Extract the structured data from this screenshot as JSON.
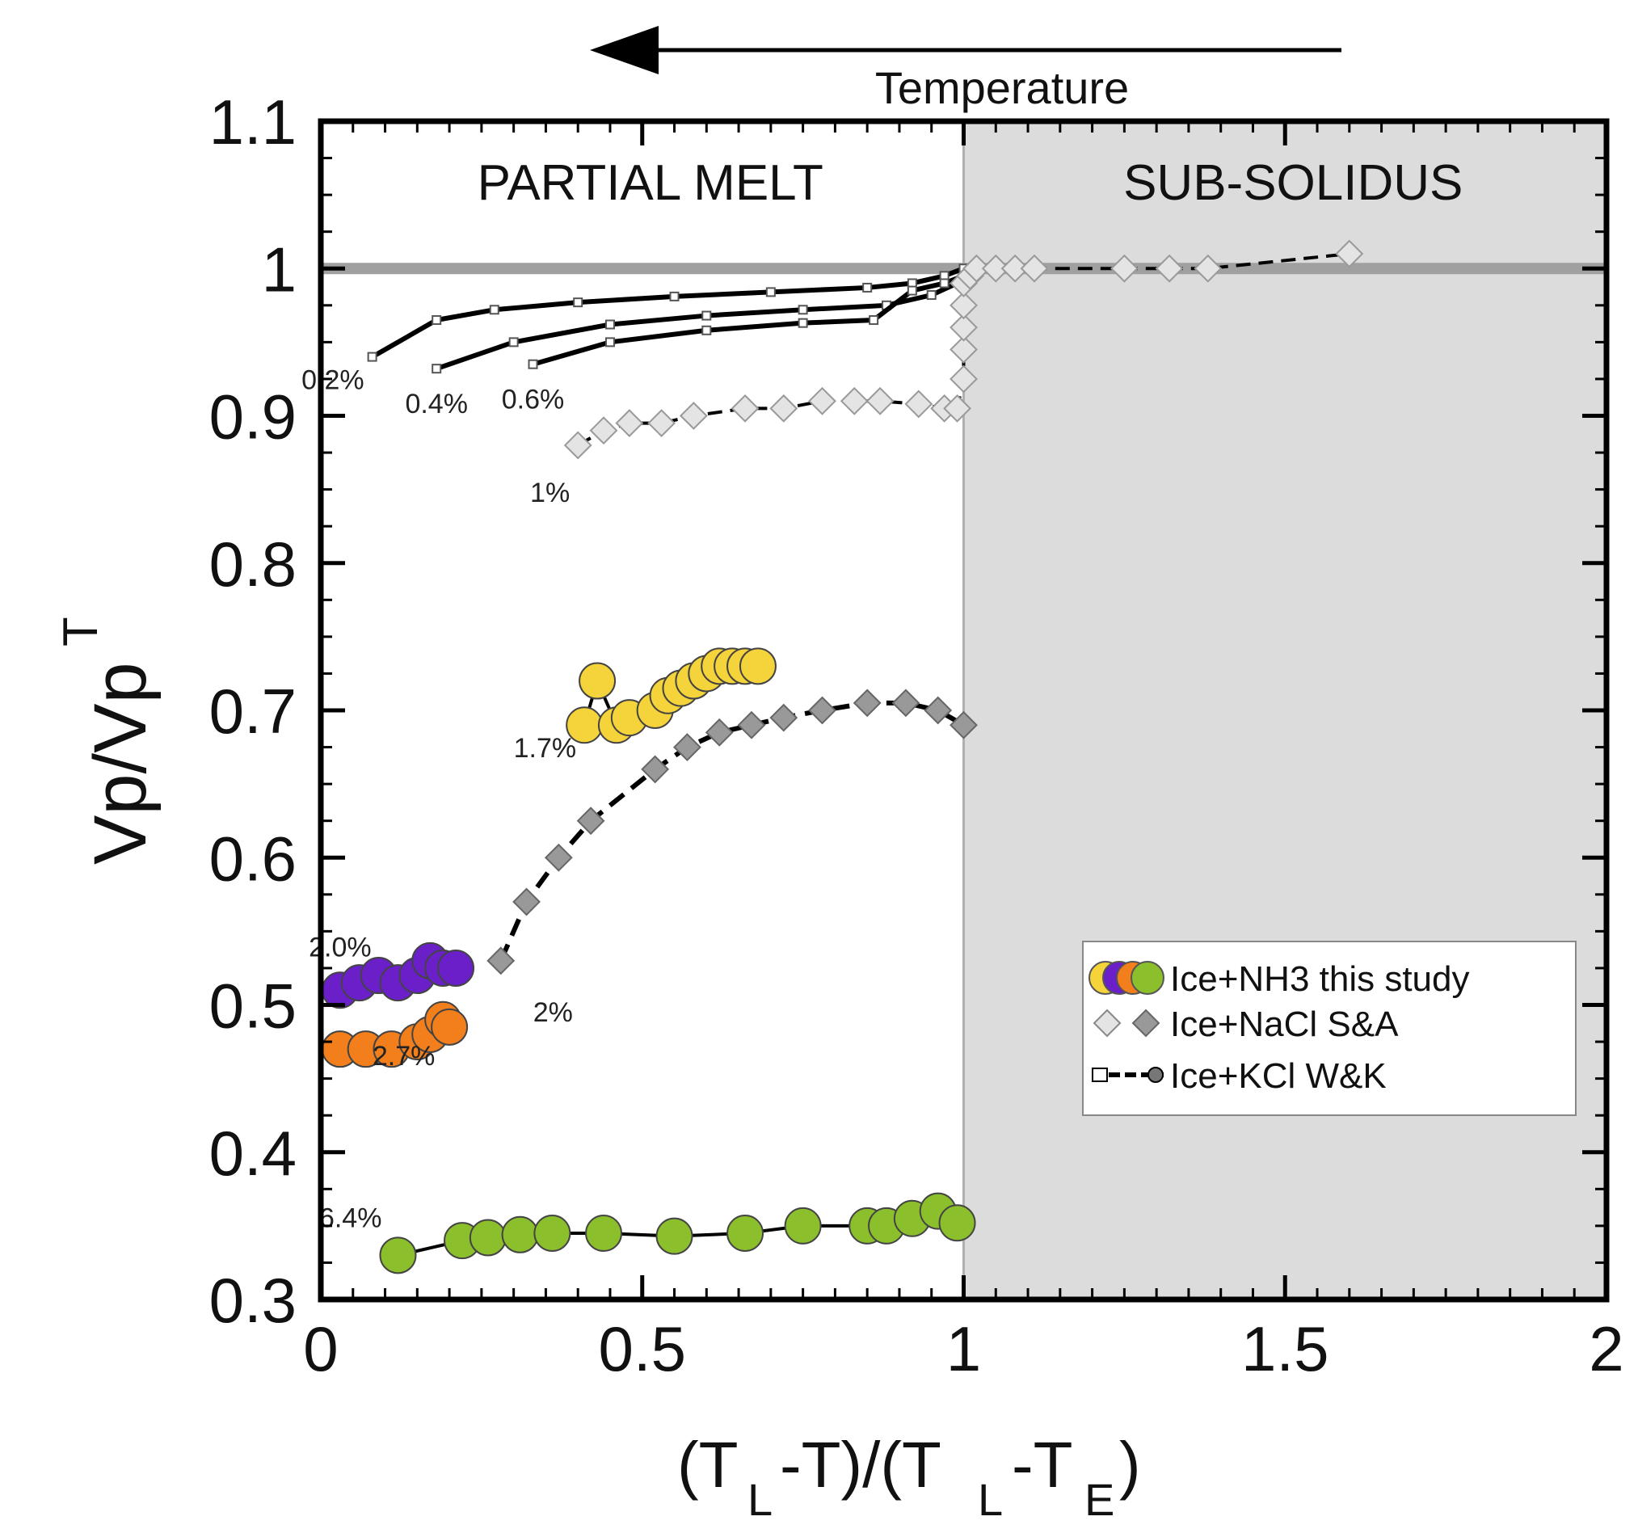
{
  "chart_data": {
    "type": "scatter",
    "title": "",
    "xlabel": "(T_L-T)/(T_L-T_E)",
    "ylabel": "Vp/Vp^T",
    "xlim": [
      0,
      2
    ],
    "ylim": [
      0.3,
      1.1
    ],
    "x_ticks": [
      {
        "value": 0,
        "label": "0"
      },
      {
        "value": 0.5,
        "label": "0.5"
      },
      {
        "value": 1,
        "label": "1"
      },
      {
        "value": 1.5,
        "label": "1.5"
      },
      {
        "value": 2,
        "label": "2"
      }
    ],
    "y_ticks": [
      {
        "value": 0.3,
        "label": "0.3"
      },
      {
        "value": 0.4,
        "label": "0.4"
      },
      {
        "value": 0.5,
        "label": "0.5"
      },
      {
        "value": 0.6,
        "label": "0.6"
      },
      {
        "value": 0.7,
        "label": "0.7"
      },
      {
        "value": 0.8,
        "label": "0.8"
      },
      {
        "value": 0.9,
        "label": "0.9"
      },
      {
        "value": 1,
        "label": "1"
      },
      {
        "value": 1.1,
        "label": "1.1"
      }
    ],
    "regions": [
      {
        "name": "partial-melt",
        "label": "PARTIAL MELT",
        "x_range": [
          0,
          1
        ],
        "fill": "#ffffff"
      },
      {
        "name": "sub-solidus",
        "label": "SUB-SOLIDUS",
        "x_range": [
          1,
          2
        ],
        "fill": "#dcdcdc"
      }
    ],
    "reference_line": {
      "y": 1.0,
      "color": "#a0a0a0"
    },
    "top_arrow": {
      "label": "Temperature",
      "direction": "left"
    },
    "legend": [
      {
        "label": "Ice+NH3 this study",
        "marker": "circle",
        "colors": [
          "#f5d33a",
          "#6a1fc9",
          "#f27f1b",
          "#8cbf2c"
        ]
      },
      {
        "label": "Ice+NaCl S&A",
        "marker": "diamond",
        "colors": [
          "#e4e4e4",
          "#999999"
        ]
      },
      {
        "label": "Ice+KCl W&K",
        "marker": "line",
        "colors": [
          "#ffffff",
          "#777777"
        ]
      }
    ],
    "series": [
      {
        "name": "KCl 0.2%",
        "label": "0.2%",
        "group": "Ice+KCl W&K",
        "marker": "square",
        "x": [
          0.08,
          0.18,
          0.27,
          0.4,
          0.55,
          0.7,
          0.85,
          0.92,
          0.97,
          1.0,
          1.02
        ],
        "y": [
          0.94,
          0.965,
          0.972,
          0.977,
          0.981,
          0.984,
          0.987,
          0.99,
          0.995,
          1.0,
          1.0
        ]
      },
      {
        "name": "KCl 0.4%",
        "label": "0.4%",
        "group": "Ice+KCl W&K",
        "marker": "square",
        "x": [
          0.18,
          0.3,
          0.45,
          0.6,
          0.75,
          0.88,
          0.95,
          1.0,
          1.02
        ],
        "y": [
          0.932,
          0.95,
          0.962,
          0.968,
          0.972,
          0.975,
          0.982,
          0.992,
          1.0
        ]
      },
      {
        "name": "KCl 0.6%",
        "label": "0.6%",
        "group": "Ice+KCl W&K",
        "marker": "square",
        "x": [
          0.33,
          0.45,
          0.6,
          0.75,
          0.86,
          0.92,
          0.97,
          1.0
        ],
        "y": [
          0.935,
          0.95,
          0.958,
          0.963,
          0.965,
          0.985,
          0.99,
          0.995
        ]
      },
      {
        "name": "NaCl 1%",
        "label": "1%",
        "group": "Ice+NaCl S&A",
        "marker": "diamond-light",
        "x": [
          0.4,
          0.44,
          0.48,
          0.53,
          0.58,
          0.66,
          0.72,
          0.78,
          0.83,
          0.87,
          0.93,
          0.97,
          0.99,
          1.0,
          1.0,
          1.0,
          1.0,
          1.0,
          1.01,
          1.02,
          1.05,
          1.08,
          1.11,
          1.25,
          1.32,
          1.38,
          1.6
        ],
        "y": [
          0.88,
          0.89,
          0.895,
          0.895,
          0.9,
          0.905,
          0.905,
          0.91,
          0.91,
          0.91,
          0.908,
          0.905,
          0.905,
          0.925,
          0.945,
          0.96,
          0.975,
          0.99,
          0.995,
          1.0,
          1.0,
          1.0,
          1.0,
          1.0,
          1.0,
          1.0,
          1.01
        ]
      },
      {
        "name": "NaCl 2%",
        "label": "2%",
        "group": "Ice+NaCl S&A",
        "marker": "diamond-dark",
        "x": [
          0.28,
          0.32,
          0.37,
          0.42,
          0.52,
          0.57,
          0.62,
          0.67,
          0.72,
          0.78,
          0.85,
          0.91,
          0.96,
          1.0
        ],
        "y": [
          0.53,
          0.57,
          0.6,
          0.625,
          0.66,
          0.675,
          0.685,
          0.69,
          0.695,
          0.7,
          0.705,
          0.705,
          0.7,
          0.69
        ]
      },
      {
        "name": "NH3 1.7%",
        "label": "1.7%",
        "group": "Ice+NH3 this study",
        "marker": "circle",
        "color": "#f5d33a",
        "x": [
          0.41,
          0.43,
          0.46,
          0.48,
          0.52,
          0.54,
          0.56,
          0.58,
          0.6,
          0.62,
          0.64,
          0.66,
          0.68
        ],
        "y": [
          0.69,
          0.72,
          0.69,
          0.695,
          0.7,
          0.71,
          0.715,
          0.72,
          0.725,
          0.73,
          0.73,
          0.73,
          0.73
        ]
      },
      {
        "name": "NH3 2.0%",
        "label": "2.0%",
        "group": "Ice+NH3 this study",
        "marker": "circle",
        "color": "#6a1fc9",
        "x": [
          0.03,
          0.06,
          0.09,
          0.12,
          0.15,
          0.17,
          0.19,
          0.21
        ],
        "y": [
          0.51,
          0.515,
          0.52,
          0.515,
          0.52,
          0.53,
          0.525,
          0.525
        ]
      },
      {
        "name": "NH3 2.7%",
        "label": "2.7%",
        "group": "Ice+NH3 this study",
        "marker": "circle",
        "color": "#f27f1b",
        "x": [
          0.03,
          0.07,
          0.11,
          0.15,
          0.17,
          0.19,
          0.2
        ],
        "y": [
          0.47,
          0.47,
          0.47,
          0.475,
          0.48,
          0.49,
          0.485
        ]
      },
      {
        "name": "NH3 6.4%",
        "label": "6.4%",
        "group": "Ice+NH3 this study",
        "marker": "circle",
        "color": "#8cbf2c",
        "x": [
          0.12,
          0.22,
          0.26,
          0.31,
          0.36,
          0.44,
          0.55,
          0.66,
          0.75,
          0.85,
          0.88,
          0.92,
          0.96,
          0.99
        ],
        "y": [
          0.33,
          0.34,
          0.342,
          0.344,
          0.345,
          0.345,
          0.343,
          0.345,
          0.35,
          0.35,
          0.35,
          0.355,
          0.36,
          0.352
        ]
      }
    ],
    "label_placements": {
      "KCl 0.2%": "left-below",
      "KCl 0.4%": "below",
      "KCl 0.6%": "below",
      "NaCl 1%": "below-left",
      "NaCl 2%": "below-right",
      "NH3 1.7%": "left-below",
      "NH3 2.0%": "above",
      "NH3 2.7%": "right",
      "NH3 6.4%": "above-left"
    }
  }
}
